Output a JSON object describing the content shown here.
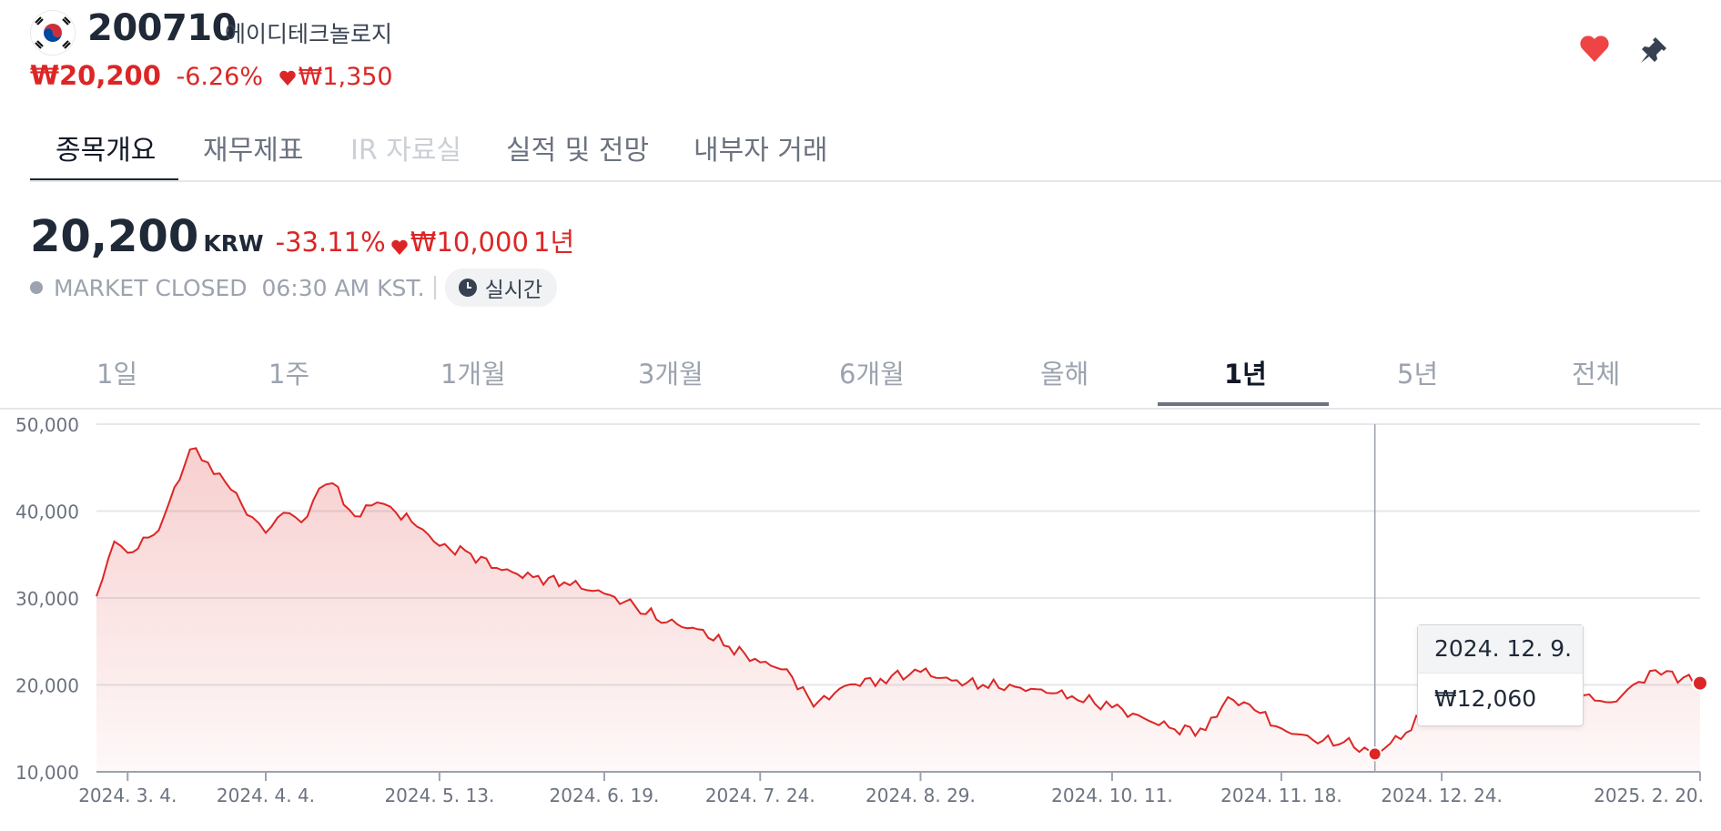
{
  "header": {
    "ticker": "200710",
    "company": "에이디테크놀로지",
    "price": "₩20,200",
    "change_pct": "-6.26%",
    "change_abs": "₩1,350",
    "flag_icon": "korea-flag-icon",
    "favorite_icon": "heart-icon",
    "pin_icon": "pin-icon",
    "accent_color": "#dc2626"
  },
  "tabs": [
    {
      "label": "종목개요",
      "state": "active"
    },
    {
      "label": "재무제표",
      "state": "normal"
    },
    {
      "label": "IR 자료실",
      "state": "disabled"
    },
    {
      "label": "실적 및 전망",
      "state": "normal"
    },
    {
      "label": "내부자 거래",
      "state": "normal"
    }
  ],
  "quote": {
    "price": "20,200",
    "currency": "KRW",
    "change_pct": "-33.11%",
    "change_abs": "₩10,000",
    "period": "1년",
    "market_status": "MARKET CLOSED",
    "time": "06:30 AM KST.",
    "realtime_label": "실시간"
  },
  "ranges": [
    {
      "label": "1일"
    },
    {
      "label": "1주"
    },
    {
      "label": "1개월"
    },
    {
      "label": "3개월"
    },
    {
      "label": "6개월"
    },
    {
      "label": "올해"
    },
    {
      "label": "1년",
      "active": true
    },
    {
      "label": "5년"
    },
    {
      "label": "전체"
    }
  ],
  "tooltip": {
    "date": "2024. 12. 9.",
    "value": "₩12,060"
  },
  "chart_data": {
    "type": "area",
    "x": [
      "2024-02-26",
      "2024-03-01",
      "2024-03-04",
      "2024-03-11",
      "2024-03-18",
      "2024-03-22",
      "2024-03-26",
      "2024-04-01",
      "2024-04-04",
      "2024-04-08",
      "2024-04-12",
      "2024-04-16",
      "2024-04-19",
      "2024-04-24",
      "2024-04-29",
      "2024-05-02",
      "2024-05-08",
      "2024-05-13",
      "2024-05-20",
      "2024-05-27",
      "2024-06-03",
      "2024-06-10",
      "2024-06-19",
      "2024-06-26",
      "2024-07-03",
      "2024-07-10",
      "2024-07-17",
      "2024-07-24",
      "2024-07-30",
      "2024-08-05",
      "2024-08-12",
      "2024-08-20",
      "2024-08-29",
      "2024-09-05",
      "2024-09-12",
      "2024-09-24",
      "2024-10-02",
      "2024-10-11",
      "2024-10-18",
      "2024-10-25",
      "2024-11-01",
      "2024-11-06",
      "2024-11-12",
      "2024-11-18",
      "2024-11-25",
      "2024-12-02",
      "2024-12-09",
      "2024-12-16",
      "2024-12-24",
      "2025-01-06",
      "2025-01-20",
      "2025-01-31",
      "2025-02-10",
      "2025-02-20"
    ],
    "y": [
      30200,
      36500,
      35200,
      37800,
      47100,
      45600,
      43300,
      39300,
      37500,
      39800,
      38700,
      42600,
      43200,
      39400,
      41000,
      40500,
      38200,
      36000,
      35100,
      33200,
      32400,
      31800,
      30500,
      29000,
      27200,
      26400,
      24400,
      22600,
      21800,
      17500,
      19900,
      20700,
      21500,
      20500,
      20000,
      19500,
      18700,
      17400,
      16200,
      14900,
      14800,
      18600,
      17100,
      15000,
      13700,
      13400,
      12060,
      14500,
      19000,
      20500,
      19200,
      18000,
      21700,
      20200
    ],
    "ylim": [
      10000,
      50000
    ],
    "yticks": [
      "50,000",
      "40,000",
      "30,000",
      "20,000",
      "10,000"
    ],
    "xticks": [
      "2024. 3. 4.",
      "2024. 4. 4.",
      "2024. 5. 13.",
      "2024. 6. 19.",
      "2024. 7. 24.",
      "2024. 8. 29.",
      "2024. 10. 11.",
      "2024. 11. 18.",
      "2024. 12. 24.",
      "2025. 2. 20."
    ],
    "line_color": "#dc2626",
    "grid": true,
    "highlight": {
      "date": "2024-12-09",
      "value": 12060
    }
  }
}
